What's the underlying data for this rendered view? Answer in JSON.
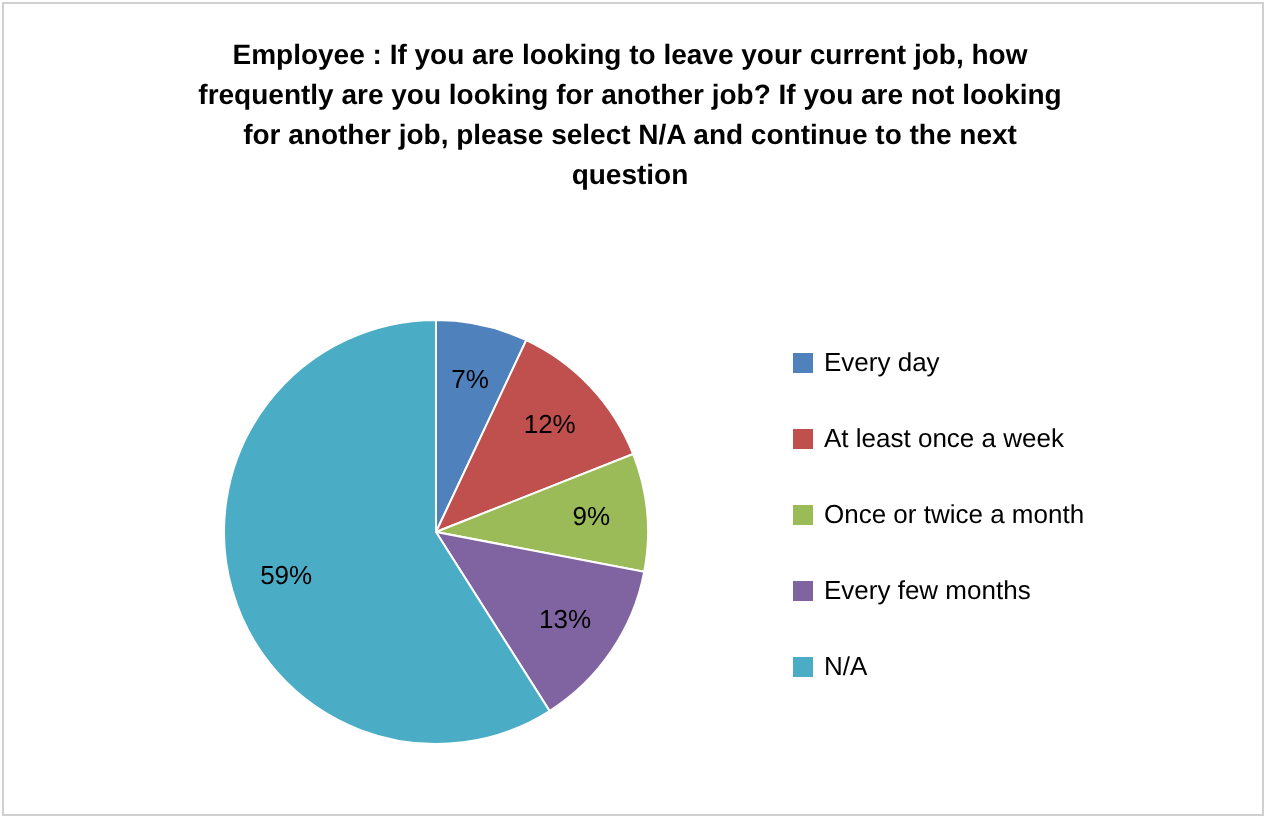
{
  "chart_data": {
    "type": "pie",
    "title": "Employee : If you are looking to leave your current job, how frequently are you looking for another job?  If you are not looking for another job, please select N/A and continue to the next question",
    "categories": [
      "Every day",
      "At least once a week",
      "Once or twice a month",
      "Every few months",
      "N/A"
    ],
    "values": [
      7,
      12,
      9,
      13,
      59
    ],
    "colors": [
      "#4f81bd",
      "#c0504d",
      "#9bbb59",
      "#8064a2",
      "#4bacc6"
    ],
    "value_labels": [
      "7%",
      "12%",
      "9%",
      "13%",
      "59%"
    ],
    "legend": "right"
  }
}
